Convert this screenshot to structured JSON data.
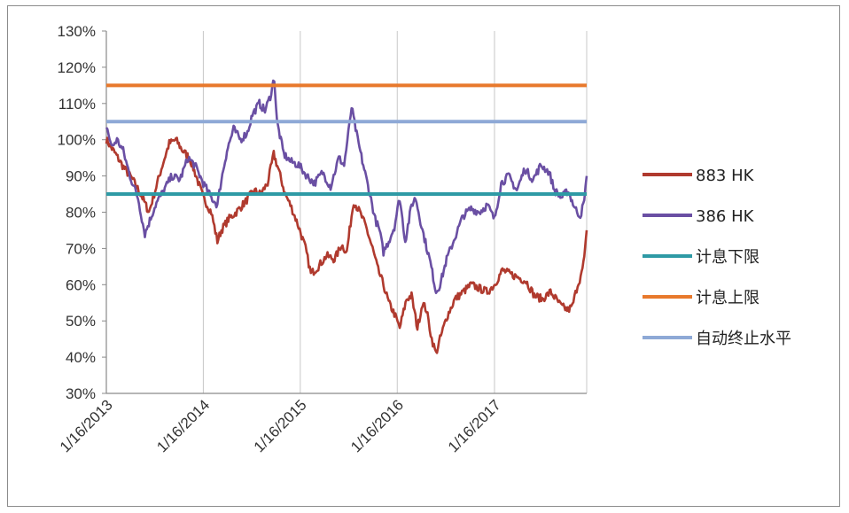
{
  "chart_data": {
    "type": "line",
    "title": "",
    "xlabel": "",
    "ylabel": "",
    "ylim": [
      0.3,
      1.3
    ],
    "y_ticks": [
      "30%",
      "40%",
      "50%",
      "60%",
      "70%",
      "80%",
      "90%",
      "100%",
      "110%",
      "120%",
      "130%"
    ],
    "x_range": [
      "2013-01-16",
      "2017-12-29"
    ],
    "x_ticks": [
      "1/16/2013",
      "1/16/2014",
      "1/16/2015",
      "1/16/2016",
      "1/16/2017"
    ],
    "x_tick_dates": [
      "2013-01-16",
      "2014-01-16",
      "2015-01-16",
      "2016-01-16",
      "2017-01-16"
    ],
    "grid": "vertical",
    "legend_position": "right",
    "series": [
      {
        "name": "883 HK",
        "color": "#b03a2e",
        "points": [
          [
            "2013-01-16",
            1.0
          ],
          [
            "2013-02-20",
            0.96
          ],
          [
            "2013-03-25",
            0.92
          ],
          [
            "2013-04-25",
            0.89
          ],
          [
            "2013-05-10",
            0.87
          ],
          [
            "2013-06-01",
            0.84
          ],
          [
            "2013-06-25",
            0.8
          ],
          [
            "2013-07-15",
            0.85
          ],
          [
            "2013-08-15",
            0.93
          ],
          [
            "2013-09-10",
            0.99
          ],
          [
            "2013-10-05",
            1.0
          ],
          [
            "2013-10-30",
            0.97
          ],
          [
            "2013-11-25",
            0.95
          ],
          [
            "2013-12-20",
            0.9
          ],
          [
            "2014-01-16",
            0.84
          ],
          [
            "2014-02-15",
            0.8
          ],
          [
            "2014-03-10",
            0.72
          ],
          [
            "2014-03-25",
            0.75
          ],
          [
            "2014-04-20",
            0.78
          ],
          [
            "2014-05-20",
            0.8
          ],
          [
            "2014-06-25",
            0.83
          ],
          [
            "2014-07-25",
            0.86
          ],
          [
            "2014-08-20",
            0.85
          ],
          [
            "2014-09-15",
            0.88
          ],
          [
            "2014-10-08",
            0.96
          ],
          [
            "2014-10-25",
            0.92
          ],
          [
            "2014-11-20",
            0.85
          ],
          [
            "2014-12-10",
            0.82
          ],
          [
            "2015-01-10",
            0.76
          ],
          [
            "2015-02-05",
            0.7
          ],
          [
            "2015-02-25",
            0.63
          ],
          [
            "2015-03-25",
            0.65
          ],
          [
            "2015-04-25",
            0.68
          ],
          [
            "2015-05-25",
            0.67
          ],
          [
            "2015-06-20",
            0.71
          ],
          [
            "2015-07-10",
            0.69
          ],
          [
            "2015-07-28",
            0.79
          ],
          [
            "2015-08-05",
            0.83
          ],
          [
            "2015-08-28",
            0.8
          ],
          [
            "2015-09-20",
            0.76
          ],
          [
            "2015-10-15",
            0.7
          ],
          [
            "2015-11-05",
            0.64
          ],
          [
            "2015-11-25",
            0.6
          ],
          [
            "2015-12-15",
            0.55
          ],
          [
            "2016-01-05",
            0.52
          ],
          [
            "2016-01-25",
            0.48
          ],
          [
            "2016-02-20",
            0.56
          ],
          [
            "2016-03-10",
            0.57
          ],
          [
            "2016-04-01",
            0.48
          ],
          [
            "2016-04-20",
            0.55
          ],
          [
            "2016-05-05",
            0.53
          ],
          [
            "2016-05-25",
            0.45
          ],
          [
            "2016-06-10",
            0.41
          ],
          [
            "2016-06-25",
            0.45
          ],
          [
            "2016-07-20",
            0.51
          ],
          [
            "2016-08-20",
            0.56
          ],
          [
            "2016-09-20",
            0.58
          ],
          [
            "2016-10-20",
            0.6
          ],
          [
            "2016-11-20",
            0.59
          ],
          [
            "2016-12-20",
            0.58
          ],
          [
            "2017-01-16",
            0.6
          ],
          [
            "2017-02-15",
            0.64
          ],
          [
            "2017-03-15",
            0.63
          ],
          [
            "2017-04-15",
            0.62
          ],
          [
            "2017-05-15",
            0.61
          ],
          [
            "2017-06-15",
            0.57
          ],
          [
            "2017-07-15",
            0.56
          ],
          [
            "2017-08-15",
            0.58
          ],
          [
            "2017-09-05",
            0.56
          ],
          [
            "2017-09-25",
            0.54
          ],
          [
            "2017-10-20",
            0.53
          ],
          [
            "2017-11-05",
            0.54
          ],
          [
            "2017-11-25",
            0.6
          ],
          [
            "2017-12-10",
            0.63
          ],
          [
            "2017-12-20",
            0.67
          ],
          [
            "2017-12-29",
            0.75
          ]
        ]
      },
      {
        "name": "386 HK",
        "color": "#6a4fa3",
        "points": [
          [
            "2013-01-16",
            1.04
          ],
          [
            "2013-02-05",
            0.98
          ],
          [
            "2013-02-25",
            1.0
          ],
          [
            "2013-03-20",
            0.97
          ],
          [
            "2013-04-15",
            0.9
          ],
          [
            "2013-05-15",
            0.84
          ],
          [
            "2013-06-10",
            0.74
          ],
          [
            "2013-06-25",
            0.77
          ],
          [
            "2013-07-20",
            0.82
          ],
          [
            "2013-08-20",
            0.86
          ],
          [
            "2013-09-20",
            0.9
          ],
          [
            "2013-10-20",
            0.89
          ],
          [
            "2013-11-20",
            0.95
          ],
          [
            "2013-12-15",
            0.93
          ],
          [
            "2014-01-16",
            0.88
          ],
          [
            "2014-02-15",
            0.84
          ],
          [
            "2014-03-10",
            0.82
          ],
          [
            "2014-03-25",
            0.89
          ],
          [
            "2014-04-15",
            0.97
          ],
          [
            "2014-05-10",
            1.03
          ],
          [
            "2014-06-05",
            1.0
          ],
          [
            "2014-07-01",
            1.02
          ],
          [
            "2014-07-20",
            1.07
          ],
          [
            "2014-08-15",
            1.1
          ],
          [
            "2014-09-05",
            1.08
          ],
          [
            "2014-09-25",
            1.12
          ],
          [
            "2014-10-10",
            1.17
          ],
          [
            "2014-10-20",
            1.05
          ],
          [
            "2014-11-15",
            0.96
          ],
          [
            "2014-12-10",
            0.94
          ],
          [
            "2015-01-10",
            0.93
          ],
          [
            "2015-02-10",
            0.9
          ],
          [
            "2015-03-10",
            0.88
          ],
          [
            "2015-04-10",
            0.91
          ],
          [
            "2015-05-10",
            0.87
          ],
          [
            "2015-06-10",
            0.95
          ],
          [
            "2015-06-30",
            0.93
          ],
          [
            "2015-07-20",
            1.04
          ],
          [
            "2015-07-28",
            1.09
          ],
          [
            "2015-08-20",
            1.0
          ],
          [
            "2015-09-10",
            0.93
          ],
          [
            "2015-10-05",
            0.85
          ],
          [
            "2015-10-25",
            0.78
          ],
          [
            "2015-11-10",
            0.75
          ],
          [
            "2015-11-25",
            0.69
          ],
          [
            "2015-12-15",
            0.72
          ],
          [
            "2016-01-05",
            0.76
          ],
          [
            "2016-01-25",
            0.84
          ],
          [
            "2016-02-15",
            0.72
          ],
          [
            "2016-03-10",
            0.82
          ],
          [
            "2016-03-25",
            0.84
          ],
          [
            "2016-04-20",
            0.75
          ],
          [
            "2016-05-20",
            0.66
          ],
          [
            "2016-06-10",
            0.58
          ],
          [
            "2016-06-25",
            0.6
          ],
          [
            "2016-07-20",
            0.67
          ],
          [
            "2016-08-20",
            0.73
          ],
          [
            "2016-09-20",
            0.79
          ],
          [
            "2016-10-20",
            0.81
          ],
          [
            "2016-11-20",
            0.8
          ],
          [
            "2016-12-20",
            0.82
          ],
          [
            "2017-01-16",
            0.78
          ],
          [
            "2017-02-10",
            0.88
          ],
          [
            "2017-03-10",
            0.9
          ],
          [
            "2017-04-10",
            0.86
          ],
          [
            "2017-05-10",
            0.92
          ],
          [
            "2017-06-10",
            0.89
          ],
          [
            "2017-07-10",
            0.93
          ],
          [
            "2017-08-10",
            0.91
          ],
          [
            "2017-08-30",
            0.86
          ],
          [
            "2017-09-25",
            0.84
          ],
          [
            "2017-10-20",
            0.86
          ],
          [
            "2017-11-15",
            0.81
          ],
          [
            "2017-12-05",
            0.79
          ],
          [
            "2017-12-20",
            0.83
          ],
          [
            "2017-12-29",
            0.9
          ]
        ]
      },
      {
        "name": "计息下限",
        "color": "#2e9aa5",
        "constant": 0.85
      },
      {
        "name": "计息上限",
        "color": "#e8792c",
        "constant": 1.15
      },
      {
        "name": "自动终止水平",
        "color": "#8ea9d6",
        "constant": 1.05
      }
    ]
  }
}
